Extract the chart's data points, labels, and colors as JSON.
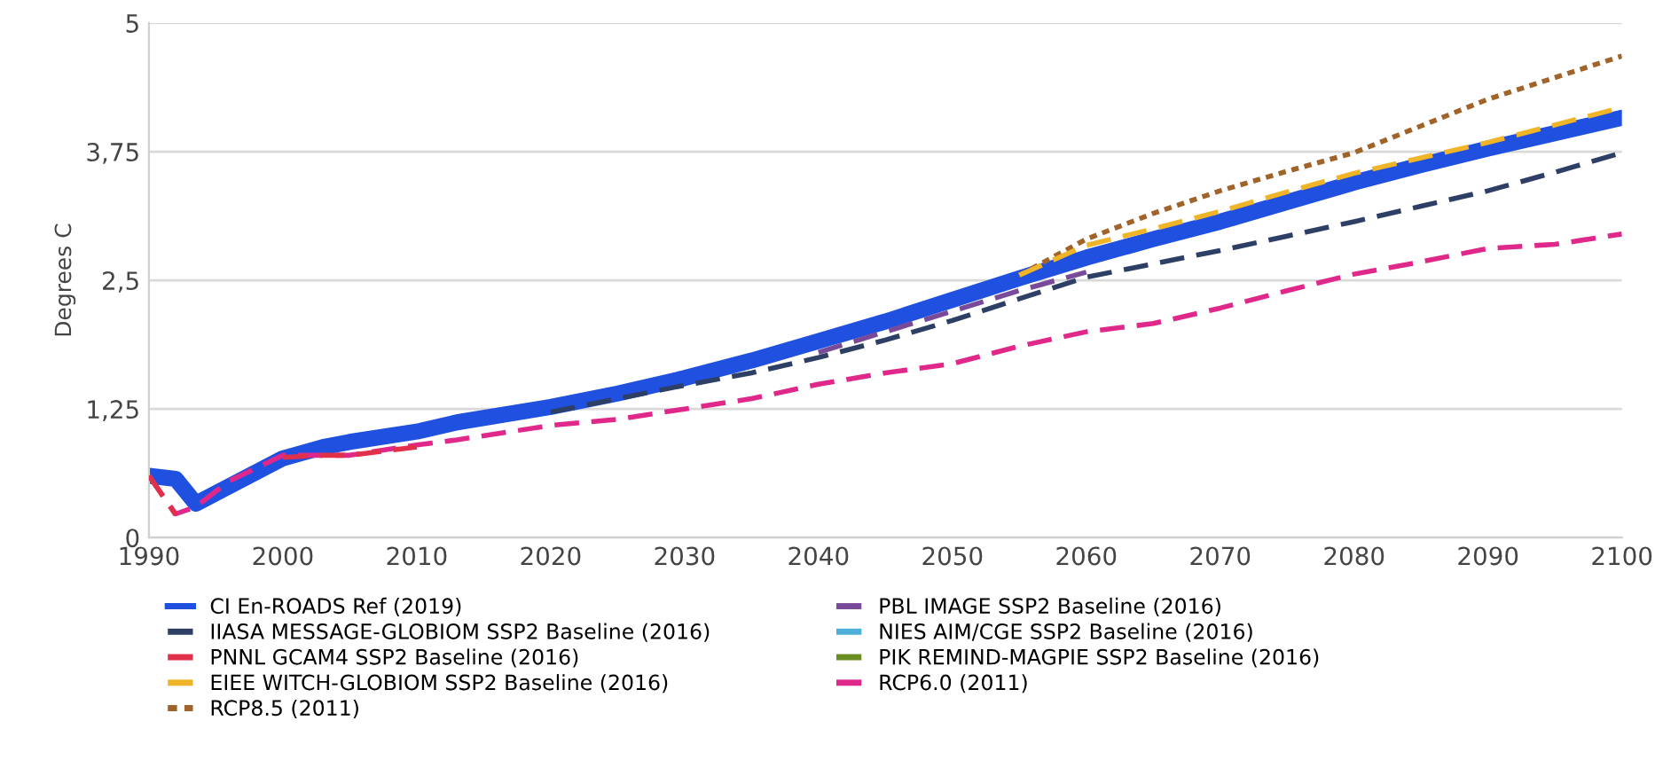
{
  "chart_data": {
    "type": "line",
    "ylabel": "Degrees C",
    "x": [
      1990,
      1992,
      1993.5,
      1996,
      2000,
      2003,
      2005,
      2010,
      2013,
      2020,
      2025,
      2030,
      2035,
      2040,
      2045,
      2050,
      2055,
      2060,
      2065,
      2070,
      2075,
      2080,
      2085,
      2090,
      2095,
      2100
    ],
    "series": [
      {
        "name": "CI En-ROADS Ref (2019)",
        "color": "#2050e0",
        "line_style": "solid",
        "values": [
          0.6,
          0.57,
          0.33,
          0.5,
          0.77,
          0.88,
          0.93,
          1.03,
          1.12,
          1.27,
          1.4,
          1.55,
          1.72,
          1.91,
          2.1,
          2.31,
          2.52,
          2.72,
          2.9,
          3.07,
          3.26,
          3.45,
          3.62,
          3.78,
          3.93,
          4.08
        ]
      },
      {
        "name": "IIASA MESSAGE-GLOBIOM SSP2 Baseline (2016)",
        "color": "#2e3f66",
        "line_style": "dashed",
        "values": [
          null,
          null,
          null,
          null,
          null,
          null,
          null,
          null,
          null,
          1.22,
          1.35,
          1.48,
          1.6,
          1.75,
          1.92,
          2.11,
          2.32,
          2.53,
          2.66,
          2.79,
          2.93,
          3.07,
          3.22,
          3.37,
          3.55,
          3.74
        ]
      },
      {
        "name": "PNNL GCAM4 SSP2 Baseline (2016)",
        "color": "#e0304a",
        "line_style": "dashed",
        "values": [
          0.6,
          0.22,
          null,
          null,
          0.78,
          0.8,
          0.8,
          0.88,
          null,
          null,
          null,
          null,
          null,
          null,
          null,
          null,
          null,
          null,
          null,
          null,
          null,
          null,
          null,
          null,
          null,
          null
        ]
      },
      {
        "name": "EIEE WITCH-GLOBIOM SSP2 Baseline (2016)",
        "color": "#f0b429",
        "line_style": "dashed",
        "values": [
          null,
          null,
          null,
          null,
          null,
          null,
          null,
          null,
          null,
          null,
          null,
          null,
          null,
          null,
          null,
          null,
          2.55,
          2.84,
          3.0,
          3.17,
          3.36,
          3.54,
          3.69,
          3.84,
          4.01,
          4.18
        ]
      },
      {
        "name": "RCP8.5 (2011)",
        "color": "#a0642a",
        "line_style": "dotted",
        "values": [
          null,
          null,
          null,
          null,
          null,
          null,
          null,
          null,
          null,
          null,
          null,
          null,
          null,
          null,
          null,
          null,
          2.55,
          2.9,
          3.15,
          3.37,
          3.56,
          3.74,
          4.0,
          4.26,
          4.47,
          4.68
        ]
      },
      {
        "name": "PBL IMAGE SSP2 Baseline (2016)",
        "color": "#7a4a9a",
        "line_style": "dashed",
        "values": [
          null,
          null,
          null,
          null,
          null,
          null,
          null,
          null,
          null,
          null,
          null,
          null,
          null,
          1.8,
          2.0,
          2.2,
          2.4,
          2.58,
          null,
          null,
          null,
          null,
          null,
          null,
          null,
          null
        ]
      },
      {
        "name": "NIES AIM/CGE SSP2 Baseline (2016)",
        "color": "#4cb0d8",
        "line_style": "dashed",
        "values": [
          null,
          null,
          null,
          null,
          null,
          null,
          null,
          null,
          null,
          null,
          null,
          null,
          null,
          null,
          null,
          null,
          null,
          null,
          null,
          null,
          null,
          null,
          null,
          null,
          null,
          null
        ]
      },
      {
        "name": "PIK REMIND-MAGPIE SSP2 Baseline (2016)",
        "color": "#6b8e23",
        "line_style": "dashed",
        "values": [
          null,
          null,
          null,
          null,
          null,
          null,
          null,
          null,
          null,
          null,
          null,
          null,
          null,
          null,
          null,
          null,
          null,
          null,
          null,
          null,
          null,
          null,
          null,
          null,
          null,
          null
        ]
      },
      {
        "name": "RCP6.0 (2011)",
        "color": "#e0288a",
        "line_style": "dashed",
        "values": [
          0.6,
          0.23,
          0.3,
          0.55,
          0.8,
          0.8,
          0.8,
          0.9,
          0.95,
          1.09,
          1.15,
          1.25,
          1.35,
          1.49,
          1.6,
          1.69,
          1.86,
          2.0,
          2.08,
          2.23,
          2.4,
          2.56,
          2.68,
          2.81,
          2.85,
          2.95
        ]
      }
    ],
    "xlim": [
      1990,
      2100
    ],
    "xticks": [
      1990,
      2000,
      2010,
      2020,
      2030,
      2040,
      2050,
      2060,
      2070,
      2080,
      2090,
      2100
    ],
    "ylim": [
      0,
      5
    ],
    "yticks": [
      0,
      {
        "value": 1.25,
        "label": "1,25"
      },
      {
        "value": 2.5,
        "label": "2,5"
      },
      {
        "value": 3.75,
        "label": "3,75"
      },
      5
    ],
    "grid": "y",
    "legend": "bottom",
    "marker": "none"
  }
}
